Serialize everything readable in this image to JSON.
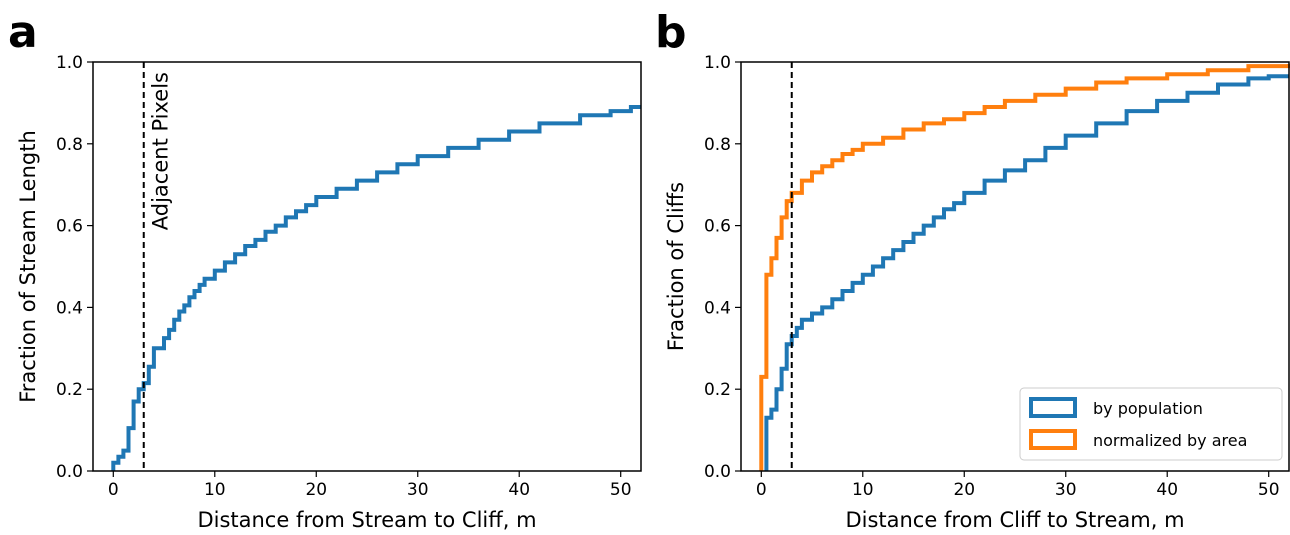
{
  "chart_data": [
    {
      "panel_label": "a",
      "type": "line",
      "step": true,
      "xlabel": "Distance from Stream to Cliff, m",
      "ylabel": "Fraction of Stream Length",
      "xlim": [
        -2,
        52
      ],
      "ylim": [
        0,
        1.0
      ],
      "xticks": [
        0,
        10,
        20,
        30,
        40,
        50
      ],
      "yticks": [
        "0.0",
        "0.2",
        "0.4",
        "0.6",
        "0.8",
        "1.0"
      ],
      "vline": {
        "x": 3,
        "label": "Adjacent Pixels",
        "style": "dashed"
      },
      "series": [
        {
          "color": "#1f77b4",
          "points": [
            [
              0,
              0
            ],
            [
              0,
              0.02
            ],
            [
              0.5,
              0.02
            ],
            [
              0.5,
              0.035
            ],
            [
              1,
              0.035
            ],
            [
              1,
              0.05
            ],
            [
              1.5,
              0.05
            ],
            [
              1.5,
              0.105
            ],
            [
              2,
              0.105
            ],
            [
              2,
              0.17
            ],
            [
              2.5,
              0.17
            ],
            [
              2.5,
              0.2
            ],
            [
              3,
              0.2
            ],
            [
              3,
              0.215
            ],
            [
              3.5,
              0.215
            ],
            [
              3.5,
              0.255
            ],
            [
              4,
              0.255
            ],
            [
              4,
              0.3
            ],
            [
              5,
              0.3
            ],
            [
              5,
              0.325
            ],
            [
              5.5,
              0.325
            ],
            [
              5.5,
              0.345
            ],
            [
              6,
              0.345
            ],
            [
              6,
              0.37
            ],
            [
              6.5,
              0.37
            ],
            [
              6.5,
              0.39
            ],
            [
              7,
              0.39
            ],
            [
              7,
              0.405
            ],
            [
              7.5,
              0.405
            ],
            [
              7.5,
              0.425
            ],
            [
              8,
              0.425
            ],
            [
              8,
              0.44
            ],
            [
              8.5,
              0.44
            ],
            [
              8.5,
              0.455
            ],
            [
              9,
              0.455
            ],
            [
              9,
              0.47
            ],
            [
              10,
              0.47
            ],
            [
              10,
              0.49
            ],
            [
              11,
              0.49
            ],
            [
              11,
              0.51
            ],
            [
              12,
              0.51
            ],
            [
              12,
              0.53
            ],
            [
              13,
              0.53
            ],
            [
              13,
              0.55
            ],
            [
              14,
              0.55
            ],
            [
              14,
              0.565
            ],
            [
              15,
              0.565
            ],
            [
              15,
              0.585
            ],
            [
              16,
              0.585
            ],
            [
              16,
              0.6
            ],
            [
              17,
              0.6
            ],
            [
              17,
              0.62
            ],
            [
              18,
              0.62
            ],
            [
              18,
              0.635
            ],
            [
              19,
              0.635
            ],
            [
              19,
              0.65
            ],
            [
              20,
              0.65
            ],
            [
              20,
              0.67
            ],
            [
              22,
              0.67
            ],
            [
              22,
              0.69
            ],
            [
              24,
              0.69
            ],
            [
              24,
              0.71
            ],
            [
              26,
              0.71
            ],
            [
              26,
              0.73
            ],
            [
              28,
              0.73
            ],
            [
              28,
              0.75
            ],
            [
              30,
              0.75
            ],
            [
              30,
              0.77
            ],
            [
              33,
              0.77
            ],
            [
              33,
              0.79
            ],
            [
              36,
              0.79
            ],
            [
              36,
              0.81
            ],
            [
              39,
              0.81
            ],
            [
              39,
              0.83
            ],
            [
              42,
              0.83
            ],
            [
              42,
              0.85
            ],
            [
              46,
              0.85
            ],
            [
              46,
              0.87
            ],
            [
              49,
              0.87
            ],
            [
              49,
              0.88
            ],
            [
              51,
              0.88
            ],
            [
              51,
              0.89
            ],
            [
              52,
              0.89
            ]
          ]
        }
      ]
    },
    {
      "panel_label": "b",
      "type": "line",
      "step": true,
      "xlabel": "Distance from Cliff to Stream, m",
      "ylabel": "Fraction of Cliffs",
      "xlim": [
        -2,
        52
      ],
      "ylim": [
        0,
        1.0
      ],
      "xticks": [
        0,
        10,
        20,
        30,
        40,
        50
      ],
      "yticks": [
        "0.0",
        "0.2",
        "0.4",
        "0.6",
        "0.8",
        "1.0"
      ],
      "vline": {
        "x": 3,
        "style": "dashed"
      },
      "legend": {
        "location": "lower-right"
      },
      "series": [
        {
          "name": "by population",
          "color": "#1f77b4",
          "points": [
            [
              0.5,
              0.0
            ],
            [
              0.5,
              0.085
            ],
            [
              0.5,
              0.13
            ],
            [
              1,
              0.13
            ],
            [
              1,
              0.15
            ],
            [
              1.5,
              0.15
            ],
            [
              1.5,
              0.2
            ],
            [
              2,
              0.2
            ],
            [
              2,
              0.25
            ],
            [
              2.5,
              0.25
            ],
            [
              2.5,
              0.31
            ],
            [
              3,
              0.31
            ],
            [
              3,
              0.33
            ],
            [
              3.5,
              0.33
            ],
            [
              3.5,
              0.35
            ],
            [
              4,
              0.35
            ],
            [
              4,
              0.37
            ],
            [
              5,
              0.37
            ],
            [
              5,
              0.385
            ],
            [
              6,
              0.385
            ],
            [
              6,
              0.4
            ],
            [
              7,
              0.4
            ],
            [
              7,
              0.42
            ],
            [
              8,
              0.42
            ],
            [
              8,
              0.44
            ],
            [
              9,
              0.44
            ],
            [
              9,
              0.46
            ],
            [
              10,
              0.46
            ],
            [
              10,
              0.48
            ],
            [
              11,
              0.48
            ],
            [
              11,
              0.5
            ],
            [
              12,
              0.5
            ],
            [
              12,
              0.52
            ],
            [
              13,
              0.52
            ],
            [
              13,
              0.54
            ],
            [
              14,
              0.54
            ],
            [
              14,
              0.56
            ],
            [
              15,
              0.56
            ],
            [
              15,
              0.58
            ],
            [
              16,
              0.58
            ],
            [
              16,
              0.6
            ],
            [
              17,
              0.6
            ],
            [
              17,
              0.62
            ],
            [
              18,
              0.62
            ],
            [
              18,
              0.64
            ],
            [
              19,
              0.64
            ],
            [
              19,
              0.655
            ],
            [
              20,
              0.655
            ],
            [
              20,
              0.68
            ],
            [
              22,
              0.68
            ],
            [
              22,
              0.71
            ],
            [
              24,
              0.71
            ],
            [
              24,
              0.735
            ],
            [
              26,
              0.735
            ],
            [
              26,
              0.76
            ],
            [
              28,
              0.76
            ],
            [
              28,
              0.79
            ],
            [
              30,
              0.79
            ],
            [
              30,
              0.82
            ],
            [
              33,
              0.82
            ],
            [
              33,
              0.85
            ],
            [
              36,
              0.85
            ],
            [
              36,
              0.88
            ],
            [
              39,
              0.88
            ],
            [
              39,
              0.905
            ],
            [
              42,
              0.905
            ],
            [
              42,
              0.925
            ],
            [
              45,
              0.925
            ],
            [
              45,
              0.945
            ],
            [
              48,
              0.945
            ],
            [
              48,
              0.96
            ],
            [
              50,
              0.96
            ],
            [
              50,
              0.965
            ],
            [
              52,
              0.965
            ]
          ]
        },
        {
          "name": "normalized by area",
          "color": "#ff7f0e",
          "points": [
            [
              0,
              0.0
            ],
            [
              0,
              0.23
            ],
            [
              0.5,
              0.23
            ],
            [
              0.5,
              0.48
            ],
            [
              1,
              0.48
            ],
            [
              1,
              0.52
            ],
            [
              1.5,
              0.52
            ],
            [
              1.5,
              0.57
            ],
            [
              2,
              0.57
            ],
            [
              2,
              0.62
            ],
            [
              2.5,
              0.62
            ],
            [
              2.5,
              0.66
            ],
            [
              3,
              0.66
            ],
            [
              3,
              0.68
            ],
            [
              4,
              0.68
            ],
            [
              4,
              0.71
            ],
            [
              5,
              0.71
            ],
            [
              5,
              0.73
            ],
            [
              6,
              0.73
            ],
            [
              6,
              0.745
            ],
            [
              7,
              0.745
            ],
            [
              7,
              0.76
            ],
            [
              8,
              0.76
            ],
            [
              8,
              0.775
            ],
            [
              9,
              0.775
            ],
            [
              9,
              0.785
            ],
            [
              10,
              0.785
            ],
            [
              10,
              0.8
            ],
            [
              12,
              0.8
            ],
            [
              12,
              0.815
            ],
            [
              14,
              0.815
            ],
            [
              14,
              0.835
            ],
            [
              16,
              0.835
            ],
            [
              16,
              0.85
            ],
            [
              18,
              0.85
            ],
            [
              18,
              0.86
            ],
            [
              20,
              0.86
            ],
            [
              20,
              0.875
            ],
            [
              22,
              0.875
            ],
            [
              22,
              0.89
            ],
            [
              24,
              0.89
            ],
            [
              24,
              0.905
            ],
            [
              27,
              0.905
            ],
            [
              27,
              0.92
            ],
            [
              30,
              0.92
            ],
            [
              30,
              0.935
            ],
            [
              33,
              0.935
            ],
            [
              33,
              0.95
            ],
            [
              36,
              0.95
            ],
            [
              36,
              0.96
            ],
            [
              40,
              0.96
            ],
            [
              40,
              0.97
            ],
            [
              44,
              0.97
            ],
            [
              44,
              0.98
            ],
            [
              48,
              0.98
            ],
            [
              48,
              0.99
            ],
            [
              52,
              0.99
            ],
            [
              52,
              0.995
            ]
          ]
        }
      ]
    }
  ]
}
